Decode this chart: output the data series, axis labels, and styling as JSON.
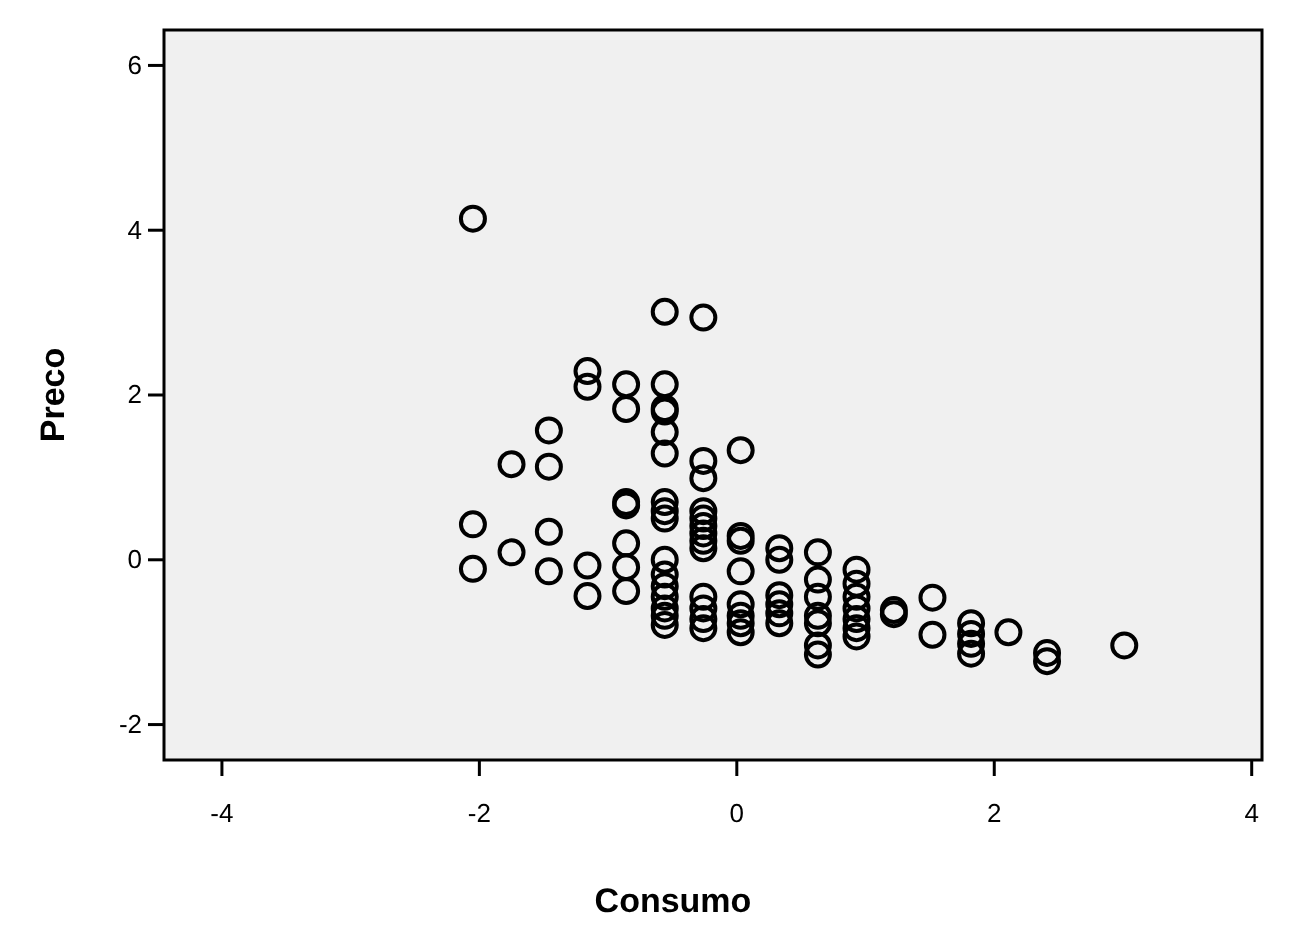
{
  "chart_data": {
    "type": "scatter",
    "xlabel": "Consumo",
    "ylabel": "Preco",
    "xlim": [
      -4.45,
      4.08
    ],
    "ylim": [
      -2.43,
      6.43
    ],
    "xticks": [
      -4,
      -2,
      0,
      2,
      4
    ],
    "yticks": [
      -2,
      0,
      2,
      4,
      6
    ],
    "grid": false,
    "marker": "circle",
    "series": [
      {
        "color": "#000000",
        "x": [
          -2.05,
          -2.05,
          -2.05,
          -1.75,
          -1.75,
          -1.46,
          -1.46,
          -1.46,
          -1.46,
          -1.16,
          -1.16,
          -1.16,
          -1.16,
          -0.86,
          -0.86,
          -0.86,
          -0.86,
          -0.86,
          -0.86,
          -0.86,
          -0.56,
          -0.56,
          -0.56,
          -0.56,
          -0.56,
          -0.56,
          -0.56,
          -0.56,
          -0.56,
          -0.56,
          -0.56,
          -0.56,
          -0.56,
          -0.56,
          -0.56,
          -0.56,
          -0.26,
          -0.26,
          -0.26,
          -0.26,
          -0.26,
          -0.26,
          -0.26,
          -0.26,
          -0.26,
          -0.26,
          -0.26,
          -0.26,
          -0.26,
          0.03,
          0.03,
          0.03,
          0.03,
          0.03,
          0.03,
          0.03,
          0.03,
          0.33,
          0.33,
          0.33,
          0.33,
          0.33,
          0.33,
          0.63,
          0.63,
          0.63,
          0.63,
          0.63,
          0.63,
          0.63,
          0.93,
          0.93,
          0.93,
          0.93,
          0.93,
          0.93,
          0.93,
          1.22,
          1.22,
          1.52,
          1.52,
          1.82,
          1.82,
          1.82,
          1.82,
          2.11,
          2.41,
          2.41,
          3.01
        ],
        "values": [
          4.14,
          0.43,
          -0.11,
          1.16,
          0.09,
          1.57,
          1.13,
          0.34,
          -0.14,
          2.29,
          2.1,
          -0.07,
          -0.44,
          2.13,
          1.83,
          0.7,
          0.66,
          0.2,
          -0.09,
          -0.38,
          3.01,
          2.13,
          1.84,
          1.8,
          1.55,
          1.29,
          0.7,
          0.59,
          0.5,
          0,
          -0.18,
          -0.32,
          -0.45,
          -0.59,
          -0.68,
          -0.79,
          2.94,
          1.2,
          0.99,
          0.59,
          0.5,
          0.41,
          0.32,
          0.23,
          0.14,
          -0.45,
          -0.59,
          -0.72,
          -0.83,
          1.33,
          0.29,
          0.23,
          -0.14,
          -0.54,
          -0.68,
          -0.77,
          -0.88,
          0.14,
          0,
          -0.43,
          -0.54,
          -0.65,
          -0.77,
          0.09,
          -0.24,
          -0.45,
          -0.68,
          -0.77,
          -1.04,
          -1.15,
          -0.12,
          -0.29,
          -0.45,
          -0.59,
          -0.72,
          -0.83,
          -0.93,
          -0.61,
          -0.66,
          -0.46,
          -0.91,
          -0.77,
          -0.9,
          -1.02,
          -1.14,
          -0.88,
          -1.13,
          -1.23,
          -1.04
        ]
      }
    ]
  }
}
